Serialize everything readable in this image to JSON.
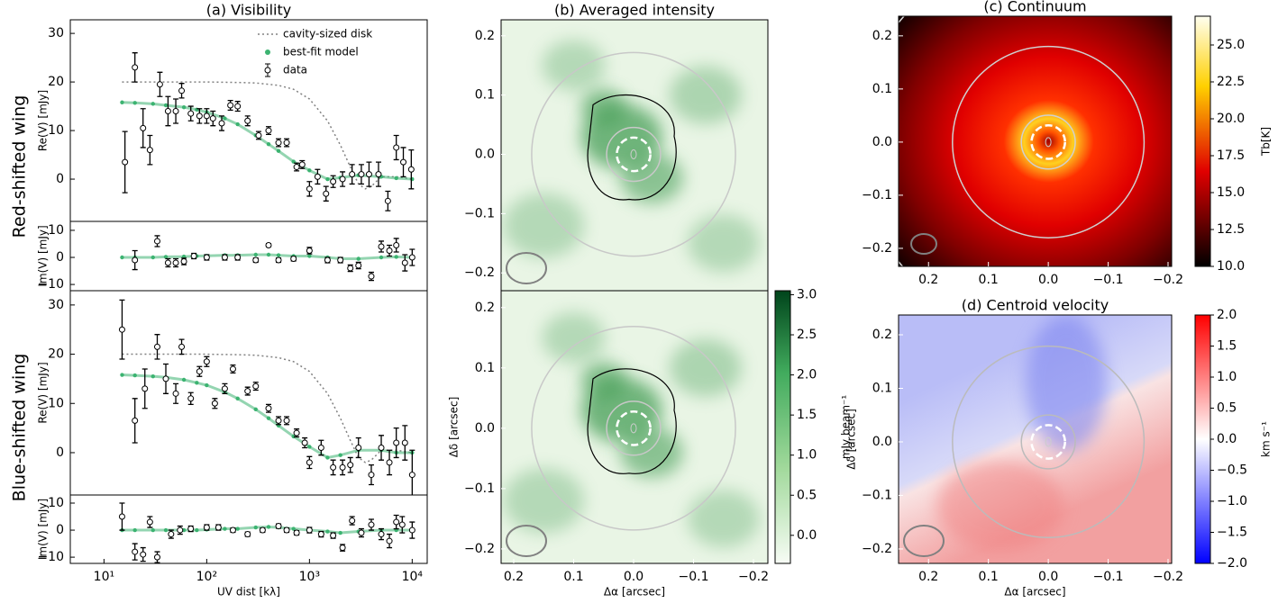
{
  "figure": {
    "row_labels": [
      "Red-shifted wing",
      "Blue-shifted wing"
    ]
  },
  "chart_data": [
    {
      "type": "visibility",
      "title": "(a) Visibility",
      "ylabel": "Re(V) [mJy]",
      "xscale": "log",
      "xlim": [
        4.7,
        14000
      ],
      "ylim": [
        -8.7,
        32.8
      ],
      "yticks": [
        0,
        10,
        20,
        30
      ],
      "legend": "upper right",
      "series": [
        {
          "name": "cavity-sized disk",
          "type": "line",
          "color": "#808080",
          "x": [
            15,
            50,
            100,
            200,
            300,
            500,
            700,
            1000,
            1500,
            2000,
            2500,
            3000,
            3500,
            4000,
            5000,
            7000,
            10000
          ],
          "values": [
            20,
            20,
            20,
            19.9,
            19.8,
            19.3,
            18.5,
            16.5,
            12,
            7,
            2.5,
            -1,
            -2,
            -1.5,
            0.5,
            0.5,
            0
          ]
        },
        {
          "name": "best-fit model",
          "type": "scatter",
          "color": "#3cb371",
          "x": [
            15,
            20,
            30,
            40,
            60,
            80,
            100,
            150,
            200,
            300,
            400,
            500,
            700,
            1000,
            1500,
            2000,
            3000,
            5000,
            7000,
            10000
          ],
          "values": [
            15.8,
            15.7,
            15.5,
            15.2,
            14.8,
            14.3,
            13.8,
            12.5,
            11.3,
            9,
            7.2,
            5.8,
            3.6,
            1.8,
            0,
            0.3,
            0.8,
            0.5,
            0.2,
            0
          ]
        },
        {
          "name": "data",
          "type": "errorbar",
          "color": "#000000",
          "x": [
            16,
            20,
            24,
            28,
            35,
            42,
            50,
            57,
            70,
            85,
            100,
            115,
            140,
            170,
            200,
            250,
            320,
            400,
            500,
            600,
            750,
            850,
            1000,
            1200,
            1450,
            1700,
            2100,
            2600,
            3200,
            3800,
            4700,
            5800,
            7000,
            8200,
            9800
          ],
          "values": [
            3.5,
            23,
            10.5,
            6,
            19.5,
            14,
            14,
            18.2,
            13.5,
            13,
            13,
            12.5,
            11.5,
            15.2,
            15,
            12,
            9,
            10,
            7.5,
            7.5,
            2.5,
            3,
            -2,
            0.5,
            -3,
            -0.5,
            0,
            1,
            1,
            1,
            1,
            -4.5,
            6.5,
            3.5,
            2
          ],
          "errors": [
            6.3,
            3,
            4,
            3,
            2.5,
            3,
            2.5,
            1.5,
            1.5,
            1.5,
            1.5,
            1.5,
            1.5,
            1,
            1,
            1,
            0.8,
            0.8,
            0.8,
            0.8,
            0.8,
            0.8,
            1.5,
            1.5,
            1.5,
            1.2,
            1.5,
            2,
            2,
            2.5,
            2.5,
            2,
            2.5,
            3,
            4
          ]
        }
      ]
    },
    {
      "type": "visibility",
      "ylabel": "Im(V) [mJy]",
      "xscale": "log",
      "xlim": [
        4.7,
        14000
      ],
      "ylim": [
        -12.3,
        13.3
      ],
      "yticks": [
        {
          "value": -10,
          "label": "−10"
        },
        0,
        10
      ],
      "series": [
        {
          "name": "best-fit model",
          "type": "scatter",
          "color": "#3cb371",
          "x": [
            15,
            20,
            30,
            40,
            60,
            80,
            100,
            150,
            200,
            300,
            400,
            500,
            700,
            1000,
            1500,
            2000,
            3000,
            5000,
            7000,
            10000
          ],
          "values": [
            0,
            0,
            0,
            0.2,
            0.3,
            0.5,
            0.6,
            0.8,
            0.8,
            1,
            1,
            0.8,
            0.5,
            0.5,
            0,
            -0.5,
            -0.5,
            0,
            0.2,
            0
          ]
        },
        {
          "name": "data",
          "type": "errorbar",
          "color": "#000000",
          "x": [
            20,
            33,
            42,
            50,
            60,
            75,
            100,
            150,
            200,
            300,
            400,
            500,
            700,
            1000,
            1500,
            2000,
            2500,
            3000,
            4000,
            5000,
            6000,
            7000,
            8500,
            10000
          ],
          "values": [
            -1,
            6,
            -2,
            -2,
            -1.5,
            0.5,
            0,
            0,
            0,
            -1,
            4.5,
            -1,
            -0.5,
            2.5,
            -1,
            -1,
            -4,
            -3,
            -7,
            4,
            2.5,
            4.5,
            -2,
            0
          ],
          "errors": [
            3.5,
            2,
            1.5,
            1.5,
            1.2,
            1,
            1,
            1,
            1,
            0.8,
            0.6,
            0.8,
            0.8,
            1.2,
            1,
            1,
            1.2,
            1.2,
            1.5,
            2,
            2,
            2.5,
            3,
            3
          ]
        }
      ]
    },
    {
      "type": "visibility",
      "ylabel": "Re(V) [mJy]",
      "xscale": "log",
      "xlim": [
        4.7,
        14000
      ],
      "ylim": [
        -8.6,
        32.9
      ],
      "yticks": [
        0,
        10,
        20,
        30
      ],
      "series": [
        {
          "name": "cavity-sized disk",
          "type": "line",
          "color": "#808080",
          "x": [
            15,
            50,
            100,
            200,
            300,
            500,
            700,
            1000,
            1500,
            2000,
            2500,
            3000,
            3500,
            4000,
            5000,
            7000,
            10000
          ],
          "values": [
            20,
            20,
            20,
            19.9,
            19.8,
            19.3,
            18.5,
            16.5,
            12,
            7,
            2.5,
            -1,
            -2,
            -1.5,
            0.5,
            0.5,
            0
          ]
        },
        {
          "name": "best-fit model",
          "type": "scatter",
          "color": "#3cb371",
          "x": [
            15,
            20,
            30,
            40,
            60,
            80,
            100,
            150,
            200,
            300,
            400,
            500,
            700,
            1000,
            1500,
            2000,
            3000,
            5000,
            7000,
            10000
          ],
          "values": [
            15.8,
            15.7,
            15.5,
            15.3,
            14.8,
            14.2,
            13.7,
            12.3,
            11,
            8.8,
            7,
            5.5,
            3.3,
            1.2,
            -1,
            -0.5,
            0.5,
            0.5,
            0,
            0
          ]
        },
        {
          "name": "data",
          "type": "errorbar",
          "color": "#000000",
          "x": [
            15,
            20,
            25,
            33,
            40,
            50,
            57,
            70,
            85,
            100,
            120,
            150,
            180,
            250,
            300,
            400,
            500,
            600,
            750,
            900,
            1000,
            1300,
            1700,
            2100,
            2500,
            3000,
            4000,
            5000,
            6000,
            7000,
            8500,
            10000
          ],
          "values": [
            25,
            6.5,
            13,
            21.5,
            15,
            12,
            21.5,
            11,
            16.5,
            18.5,
            10,
            13,
            17,
            12.5,
            13.5,
            9,
            6.5,
            6.5,
            4,
            2,
            -2,
            1,
            -3,
            -3,
            -2.5,
            1,
            -4.5,
            1,
            -2,
            2,
            2,
            -4.5
          ],
          "errors": [
            6,
            4.5,
            4,
            2.5,
            3,
            2,
            1.5,
            1.2,
            1,
            1,
            1,
            1,
            0.8,
            0.8,
            0.8,
            0.8,
            0.8,
            0.8,
            0.8,
            1,
            1.2,
            1.5,
            1.5,
            1.5,
            1.5,
            2,
            2,
            2.5,
            2.5,
            3,
            3.5,
            5
          ]
        }
      ]
    },
    {
      "type": "visibility",
      "ylabel": "Im(V) [mJy]",
      "xlabel": "UV dist [kλ]",
      "xscale": "log",
      "xlim": [
        4.7,
        14000
      ],
      "ylim": [
        -12.3,
        13
      ],
      "yticks": [
        {
          "value": -10,
          "label": "−10"
        },
        0,
        10
      ],
      "xticks": [
        {
          "value": 10,
          "label": "10¹"
        },
        {
          "value": 100,
          "label": "10²"
        },
        {
          "value": 1000,
          "label": "10³"
        },
        {
          "value": 10000,
          "label": "10⁴"
        }
      ],
      "series": [
        {
          "name": "best-fit model",
          "type": "scatter",
          "color": "#3cb371",
          "x": [
            15,
            20,
            30,
            40,
            60,
            80,
            100,
            150,
            200,
            300,
            400,
            500,
            700,
            1000,
            1500,
            2000,
            3000,
            5000,
            7000,
            10000
          ],
          "values": [
            0,
            0,
            0,
            0,
            0,
            0,
            0.2,
            0.5,
            0.5,
            1,
            1.2,
            1,
            0.5,
            0,
            -0.5,
            -1,
            -0.5,
            0,
            0,
            0
          ]
        },
        {
          "name": "data",
          "type": "errorbar",
          "color": "#000000",
          "x": [
            15,
            20,
            24,
            28,
            33,
            45,
            55,
            70,
            100,
            130,
            180,
            250,
            350,
            500,
            600,
            750,
            1000,
            1300,
            1700,
            2100,
            2600,
            3200,
            4000,
            5000,
            6000,
            7000,
            8000,
            10000
          ],
          "values": [
            5,
            -8,
            -9,
            3,
            -10,
            -1.5,
            0,
            0.5,
            1,
            1,
            0,
            -1.5,
            0,
            1.5,
            0,
            -1,
            0,
            -1.5,
            -2,
            -6.5,
            3.5,
            -1,
            2,
            -1.5,
            -4,
            3,
            2,
            0
          ],
          "errors": [
            5,
            3,
            2.5,
            2,
            2,
            1.5,
            1.5,
            1,
            1,
            1,
            0.8,
            0.8,
            0.8,
            0.8,
            0.8,
            0.8,
            1,
            1,
            1,
            1.2,
            1.5,
            1.5,
            2,
            2,
            2.5,
            2.5,
            3,
            3
          ]
        }
      ]
    },
    {
      "type": "image",
      "title": "(b) Averaged intensity",
      "colormap": "greens",
      "xlim": [
        0.221,
        -0.224
      ],
      "ylim": [
        -0.23,
        0.227
      ],
      "yticks": [
        {
          "value": -0.2,
          "label": "−0.2"
        },
        {
          "value": -0.1,
          "label": "−0.1"
        },
        {
          "value": 0,
          "label": "0.0"
        },
        0.1,
        0.2
      ]
    },
    {
      "type": "image",
      "colormap": "greens",
      "xlabel": "Δα [arcsec]",
      "ylabel": "Δδ [arcsec]",
      "xlim": [
        0.221,
        -0.224
      ],
      "ylim": [
        -0.224,
        0.228
      ],
      "xticks": [
        0.2,
        0.1,
        {
          "value": 0,
          "label": "0.0"
        },
        {
          "value": -0.1,
          "label": "−0.1"
        },
        {
          "value": -0.2,
          "label": "−0.2"
        }
      ],
      "yticks": [
        {
          "value": -0.2,
          "label": "−0.2"
        },
        {
          "value": -0.1,
          "label": "−0.1"
        },
        {
          "value": 0,
          "label": "0.0"
        },
        0.1,
        0.2
      ],
      "colorbar": {
        "label": "mJy beam⁻¹",
        "colormap": "greens",
        "lim": [
          -0.35,
          3.05
        ],
        "ticks": [
          {
            "value": 0,
            "label": "0.0"
          },
          0.5,
          {
            "value": 1,
            "label": "1.0"
          },
          1.5,
          {
            "value": 2,
            "label": "2.0"
          },
          2.5,
          {
            "value": 3,
            "label": "3.0"
          }
        ]
      }
    },
    {
      "type": "image",
      "title": "(c) Continuum",
      "colormap": "hot",
      "xlim": [
        0.25,
        -0.206
      ],
      "ylim": [
        -0.234,
        0.237
      ],
      "xticks": [
        0.2,
        0.1,
        {
          "value": 0,
          "label": "0.0"
        },
        {
          "value": -0.1,
          "label": "−0.1"
        },
        {
          "value": -0.2,
          "label": "−0.2"
        }
      ],
      "yticks": [
        {
          "value": -0.2,
          "label": "−0.2"
        },
        {
          "value": -0.1,
          "label": "−0.1"
        },
        {
          "value": 0,
          "label": "0.0"
        },
        0.1,
        0.2
      ],
      "colorbar": {
        "label": "Tb[K]",
        "colormap": "hot",
        "lim": [
          10,
          26.95
        ],
        "ticks": [
          {
            "value": 10,
            "label": "10.0"
          },
          12.5,
          {
            "value": 15,
            "label": "15.0"
          },
          17.5,
          {
            "value": 20,
            "label": "20.0"
          },
          22.5,
          {
            "value": 25,
            "label": "25.0"
          }
        ]
      }
    },
    {
      "type": "image",
      "title": "(d) Centroid velocity",
      "colormap": "bwr",
      "xlabel": "Δα [arcsec]",
      "ylabel": "Δδ [arcsec]",
      "xlim": [
        0.25,
        -0.206
      ],
      "ylim": [
        -0.227,
        0.237
      ],
      "xticks": [
        0.2,
        0.1,
        {
          "value": 0,
          "label": "0.0"
        },
        {
          "value": -0.1,
          "label": "−0.1"
        },
        {
          "value": -0.2,
          "label": "−0.2"
        }
      ],
      "yticks": [
        {
          "value": -0.2,
          "label": "−0.2"
        },
        {
          "value": -0.1,
          "label": "−0.1"
        },
        {
          "value": 0,
          "label": "0.0"
        },
        0.1,
        0.2
      ],
      "colorbar": {
        "label": "km s⁻¹",
        "colormap": "bwr",
        "lim": [
          -2,
          2
        ],
        "ticks": [
          {
            "value": -2,
            "label": "−2.0"
          },
          {
            "value": -1.5,
            "label": "−1.5"
          },
          {
            "value": -1,
            "label": "−1.0"
          },
          {
            "value": -0.5,
            "label": "−0.5"
          },
          {
            "value": 0,
            "label": "0.0"
          },
          0.5,
          {
            "value": 1,
            "label": "1.0"
          },
          1.5,
          {
            "value": 2,
            "label": "2.0"
          }
        ]
      }
    }
  ]
}
